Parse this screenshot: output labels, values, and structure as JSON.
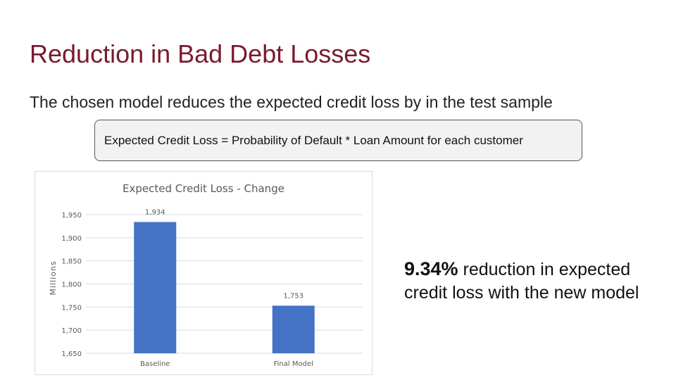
{
  "slide": {
    "title": "Reduction in Bad Debt Losses",
    "subtitle": "The chosen model reduces the expected credit loss by in the test sample",
    "formula": "Expected Credit Loss = Probability of Default * Loan Amount for each customer",
    "callout_pct": "9.34%",
    "callout_rest": " reduction in expected credit loss with the new model"
  },
  "colors": {
    "title": "#7a1a2e",
    "bar": "#4472c4",
    "grid": "#d9d9d9",
    "axis_text": "#595959"
  },
  "chart_data": {
    "type": "bar",
    "title": "Expected Credit Loss - Change",
    "ylabel": "Millions",
    "xlabel": "",
    "categories": [
      "Baseline",
      "Final Model"
    ],
    "values": [
      1934,
      1753
    ],
    "data_labels": [
      "1,934",
      "1,753"
    ],
    "ylim": [
      1650,
      1950
    ],
    "yticks": [
      1650,
      1700,
      1750,
      1800,
      1850,
      1900,
      1950
    ],
    "ytick_labels": [
      "1,650",
      "1,700",
      "1,750",
      "1,800",
      "1,850",
      "1,900",
      "1,950"
    ],
    "grid": true,
    "legend": "none"
  }
}
